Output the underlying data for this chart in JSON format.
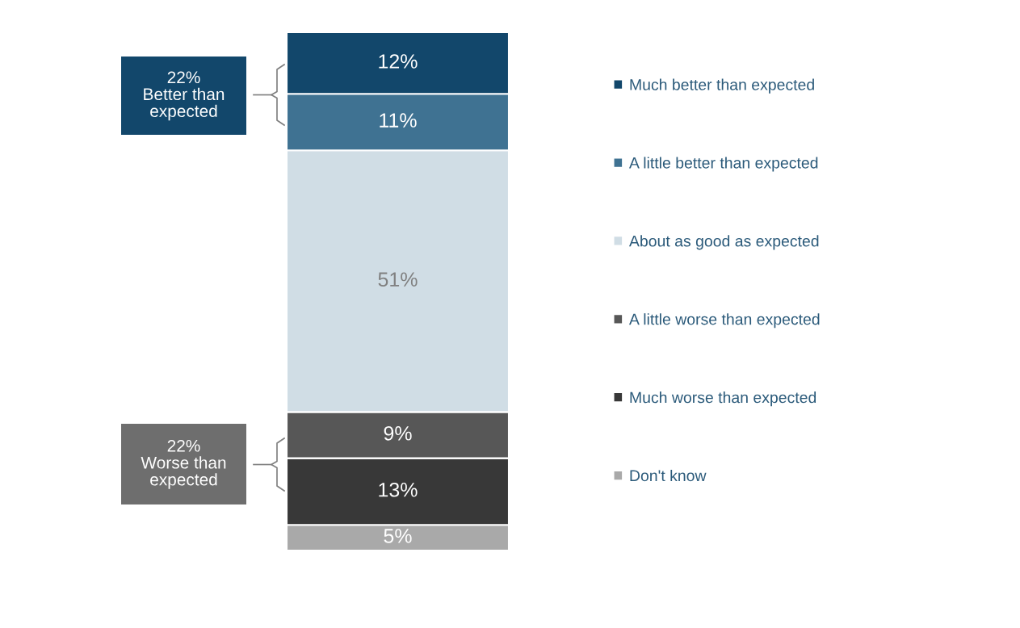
{
  "chart_data": {
    "type": "bar",
    "stacked": true,
    "categories": [
      null
    ],
    "legend": "right",
    "grid": false,
    "series": [
      {
        "name": "Don't know",
        "color": "#a9a9a9",
        "values": [
          5
        ],
        "value_labels": [
          "5%"
        ]
      },
      {
        "name": "Much worse than expected",
        "color": "#383838",
        "values": [
          13
        ],
        "value_labels": [
          "13%"
        ]
      },
      {
        "name": "A little worse than expected",
        "color": "#575757",
        "values": [
          9
        ],
        "value_labels": [
          "9%"
        ]
      },
      {
        "name": "About as good as expected",
        "color": "#d0dde5",
        "values": [
          51
        ],
        "value_labels": [
          "51%"
        ]
      },
      {
        "name": "A little better than expected",
        "color": "#3f7292",
        "values": [
          11
        ],
        "value_labels": [
          "11%"
        ]
      },
      {
        "name": "Much better than expected",
        "color": "#12476b",
        "values": [
          12
        ],
        "value_labels": [
          "12%"
        ]
      }
    ],
    "annotations": [
      "22%\nBetter than\nexpected",
      "22%\nWorse than\nexpected"
    ]
  }
}
